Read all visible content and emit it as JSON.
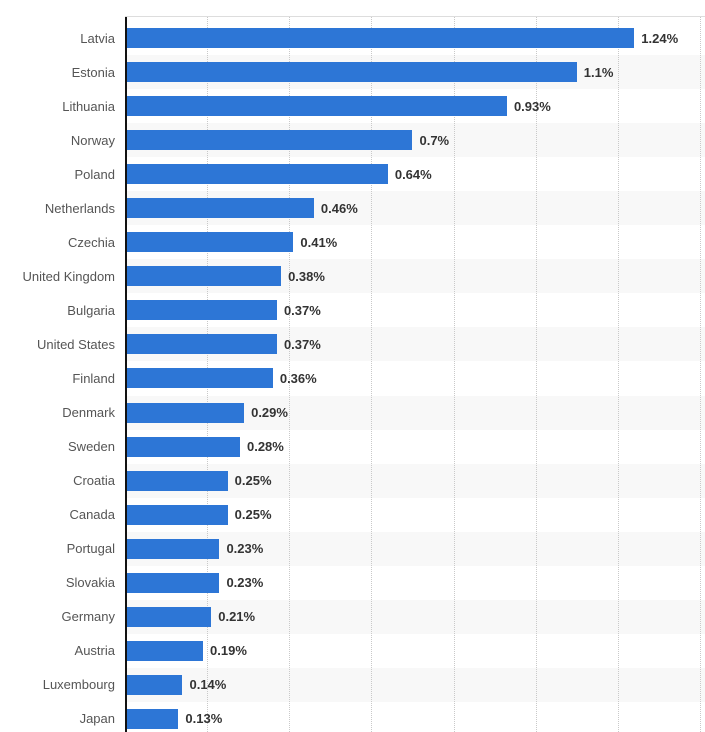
{
  "chart": {
    "bar_color": "#2d76d6",
    "stripe_color": "#f8f8f8",
    "grid_color": "#c9c9c9",
    "axis_color": "#121212",
    "top_border_color": "#dddddd",
    "category_label_color": "#555555",
    "value_label_color": "#333333"
  },
  "chart_data": {
    "type": "bar",
    "orientation": "horizontal",
    "title": "",
    "xlabel": "",
    "ylabel": "",
    "unit": "%",
    "xlim": [
      0,
      1.4
    ],
    "grid_step": 0.2,
    "grid": true,
    "legend": false,
    "categories": [
      "Latvia",
      "Estonia",
      "Lithuania",
      "Norway",
      "Poland",
      "Netherlands",
      "Czechia",
      "United Kingdom",
      "Bulgaria",
      "United States",
      "Finland",
      "Denmark",
      "Sweden",
      "Croatia",
      "Canada",
      "Portugal",
      "Slovakia",
      "Germany",
      "Austria",
      "Luxembourg",
      "Japan"
    ],
    "values": [
      1.24,
      1.1,
      0.93,
      0.7,
      0.64,
      0.46,
      0.41,
      0.38,
      0.37,
      0.37,
      0.36,
      0.29,
      0.28,
      0.25,
      0.25,
      0.23,
      0.23,
      0.21,
      0.19,
      0.14,
      0.13
    ],
    "value_labels": [
      "1.24%",
      "1.1%",
      "0.93%",
      "0.7%",
      "0.64%",
      "0.46%",
      "0.41%",
      "0.38%",
      "0.37%",
      "0.37%",
      "0.36%",
      "0.29%",
      "0.28%",
      "0.25%",
      "0.25%",
      "0.23%",
      "0.23%",
      "0.21%",
      "0.19%",
      "0.14%",
      "0.13%"
    ]
  }
}
